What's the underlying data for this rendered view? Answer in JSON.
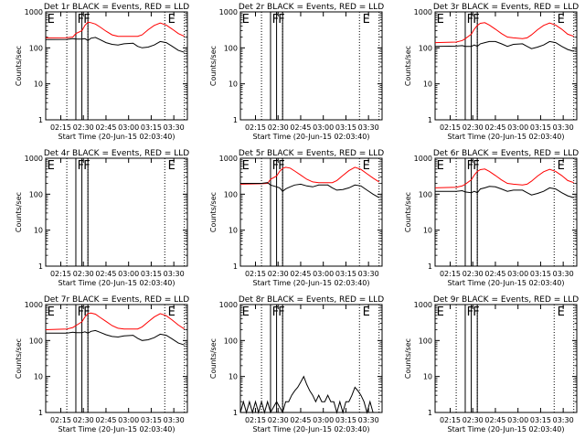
{
  "chart_data": {
    "type": "line",
    "layout": "3x3 grid",
    "log_scale_y": true,
    "yticks": [
      "1",
      "10",
      "100",
      "1000"
    ],
    "xticks": [
      "02:15",
      "02:30",
      "02:45",
      "03:00",
      "03:15",
      "03:30"
    ],
    "xlabel": "Start Time (20-Jun-15 02:03:40)",
    "ylabel": "Counts/sec",
    "xlim": [
      122,
      216
    ],
    "ylim": [
      1,
      1000
    ],
    "dotted_lines_x": [
      136,
      150,
      201,
      214
    ],
    "solid_lines_x": [
      142,
      146,
      150
    ],
    "colors": {
      "events": "#000000",
      "lld": "#ff0000"
    },
    "flag_letters": {
      "E": "E",
      "F": "F"
    },
    "panels": [
      {
        "title": "Det 1r BLACK = Events, RED = LLD",
        "flags": [
          {
            "x": 123,
            "label": "E"
          },
          {
            "x": 143,
            "label": "F"
          },
          {
            "x": 147,
            "label": "F"
          },
          {
            "x": 203,
            "label": "E"
          }
        ],
        "series": [
          {
            "name": "Events",
            "color": "#000000",
            "x": [
              122,
              136,
              140,
              142,
              146,
              148,
              150,
              152,
              155,
              158,
              162,
              166,
              170,
              174,
              180,
              183,
              186,
              190,
              194,
              198,
              202,
              206,
              210,
              214
            ],
            "y": [
              170,
              172,
              180,
              175,
              175,
              180,
              160,
              185,
              195,
              170,
              140,
              125,
              120,
              130,
              135,
              110,
              100,
              105,
              120,
              150,
              140,
              110,
              85,
              75
            ]
          },
          {
            "name": "LLD",
            "color": "#ff0000",
            "x": [
              122,
              136,
              140,
              142,
              146,
              148,
              150,
              152,
              155,
              158,
              162,
              166,
              170,
              174,
              180,
              183,
              186,
              190,
              194,
              198,
              202,
              206,
              210,
              214
            ],
            "y": [
              190,
              192,
              200,
              250,
              300,
              420,
              520,
              500,
              460,
              380,
              290,
              230,
              210,
              210,
              210,
              210,
              230,
              320,
              420,
              490,
              430,
              330,
              250,
              210
            ]
          }
        ]
      },
      {
        "title": "Det 2r BLACK = Events, RED = LLD",
        "flags": [
          {
            "x": 123,
            "label": "E"
          },
          {
            "x": 143,
            "label": "F"
          },
          {
            "x": 147,
            "label": "F"
          },
          {
            "x": 203,
            "label": "E"
          }
        ],
        "series": []
      },
      {
        "title": "Det 3r BLACK = Events, RED = LLD",
        "flags": [
          {
            "x": 123,
            "label": "E"
          },
          {
            "x": 143,
            "label": "F"
          },
          {
            "x": 147,
            "label": "F"
          },
          {
            "x": 203,
            "label": "E"
          }
        ],
        "series": [
          {
            "name": "Events",
            "color": "#000000",
            "x": [
              122,
              136,
              140,
              142,
              146,
              148,
              150,
              152,
              155,
              158,
              162,
              166,
              170,
              174,
              180,
              183,
              186,
              190,
              194,
              198,
              202,
              206,
              210,
              214
            ],
            "y": [
              110,
              112,
              115,
              110,
              110,
              120,
              110,
              130,
              140,
              150,
              150,
              130,
              110,
              125,
              130,
              110,
              95,
              105,
              120,
              150,
              140,
              110,
              90,
              80
            ]
          },
          {
            "name": "LLD",
            "color": "#ff0000",
            "x": [
              122,
              136,
              140,
              142,
              146,
              148,
              150,
              152,
              155,
              158,
              162,
              166,
              170,
              174,
              180,
              183,
              186,
              190,
              194,
              198,
              202,
              206,
              210,
              214
            ],
            "y": [
              140,
              145,
              160,
              180,
              240,
              330,
              420,
              480,
              500,
              430,
              330,
              250,
              200,
              190,
              180,
              190,
              230,
              320,
              420,
              490,
              430,
              330,
              240,
              210
            ]
          }
        ]
      },
      {
        "title": "Det 4r BLACK = Events, RED = LLD",
        "flags": [
          {
            "x": 123,
            "label": "E"
          },
          {
            "x": 143,
            "label": "F"
          },
          {
            "x": 147,
            "label": "F"
          },
          {
            "x": 203,
            "label": "E"
          }
        ],
        "series": []
      },
      {
        "title": "Det 5r BLACK = Events, RED = LLD",
        "flags": [
          {
            "x": 123,
            "label": "E"
          },
          {
            "x": 143,
            "label": "F"
          },
          {
            "x": 147,
            "label": "F"
          },
          {
            "x": 203,
            "label": "E"
          }
        ],
        "series": [
          {
            "name": "Events",
            "color": "#000000",
            "x": [
              122,
              136,
              140,
              142,
              146,
              148,
              150,
              152,
              155,
              158,
              162,
              166,
              170,
              174,
              180,
              183,
              186,
              190,
              194,
              198,
              202,
              206,
              210,
              214
            ],
            "y": [
              200,
              200,
              210,
              180,
              160,
              150,
              120,
              140,
              160,
              180,
              190,
              170,
              160,
              180,
              180,
              150,
              130,
              135,
              150,
              180,
              170,
              130,
              100,
              80
            ]
          },
          {
            "name": "LLD",
            "color": "#ff0000",
            "x": [
              122,
              136,
              140,
              142,
              146,
              148,
              150,
              152,
              155,
              158,
              162,
              166,
              170,
              174,
              180,
              183,
              186,
              190,
              194,
              198,
              202,
              206,
              210,
              214
            ],
            "y": [
              190,
              195,
              200,
              260,
              320,
              430,
              520,
              560,
              530,
              440,
              340,
              260,
              220,
              210,
              210,
              210,
              240,
              330,
              450,
              560,
              490,
              370,
              280,
              220
            ]
          }
        ]
      },
      {
        "title": "Det 6r BLACK = Events, RED = LLD",
        "flags": [
          {
            "x": 123,
            "label": "E"
          },
          {
            "x": 143,
            "label": "F"
          },
          {
            "x": 147,
            "label": "F"
          },
          {
            "x": 203,
            "label": "E"
          }
        ],
        "series": [
          {
            "name": "Events",
            "color": "#000000",
            "x": [
              122,
              136,
              140,
              142,
              146,
              148,
              150,
              152,
              155,
              158,
              162,
              166,
              170,
              174,
              180,
              183,
              186,
              190,
              194,
              198,
              202,
              206,
              210,
              214
            ],
            "y": [
              120,
              120,
              125,
              115,
              110,
              120,
              110,
              140,
              150,
              165,
              160,
              140,
              120,
              130,
              130,
              110,
              95,
              105,
              120,
              150,
              140,
              110,
              90,
              80
            ]
          },
          {
            "name": "LLD",
            "color": "#ff0000",
            "x": [
              122,
              136,
              140,
              142,
              146,
              148,
              150,
              152,
              155,
              158,
              162,
              166,
              170,
              174,
              180,
              183,
              186,
              190,
              194,
              198,
              202,
              206,
              210,
              214
            ],
            "y": [
              150,
              155,
              170,
              190,
              250,
              340,
              430,
              480,
              500,
              430,
              330,
              250,
              200,
              190,
              180,
              190,
              230,
              320,
              420,
              490,
              430,
              330,
              240,
              210
            ]
          }
        ]
      },
      {
        "title": "Det 7r BLACK = Events, RED = LLD",
        "flags": [
          {
            "x": 123,
            "label": "E"
          },
          {
            "x": 143,
            "label": "F"
          },
          {
            "x": 147,
            "label": "F"
          },
          {
            "x": 203,
            "label": "E"
          }
        ],
        "series": [
          {
            "name": "Events",
            "color": "#000000",
            "x": [
              122,
              136,
              140,
              142,
              146,
              148,
              150,
              152,
              155,
              158,
              162,
              166,
              170,
              174,
              180,
              183,
              186,
              190,
              194,
              198,
              202,
              206,
              210,
              214
            ],
            "y": [
              160,
              160,
              170,
              165,
              165,
              175,
              160,
              180,
              190,
              170,
              145,
              130,
              125,
              135,
              140,
              115,
              100,
              105,
              120,
              150,
              140,
              110,
              85,
              75
            ]
          },
          {
            "name": "LLD",
            "color": "#ff0000",
            "x": [
              122,
              136,
              140,
              142,
              146,
              148,
              150,
              152,
              155,
              158,
              162,
              166,
              170,
              174,
              180,
              183,
              186,
              190,
              194,
              198,
              202,
              206,
              210,
              214
            ],
            "y": [
              200,
              210,
              230,
              260,
              330,
              450,
              560,
              580,
              540,
              440,
              340,
              260,
              220,
              210,
              210,
              210,
              240,
              330,
              450,
              560,
              490,
              370,
              270,
              210
            ]
          }
        ]
      },
      {
        "title": "Det 8r BLACK = Events, RED = LLD",
        "flags": [
          {
            "x": 123,
            "label": "E"
          },
          {
            "x": 143,
            "label": "F"
          },
          {
            "x": 147,
            "label": "F"
          },
          {
            "x": 203,
            "label": "E"
          }
        ],
        "series": [
          {
            "name": "Events",
            "color": "#000000",
            "x": [
              122,
              124,
              126,
              128,
              130,
              132,
              134,
              136,
              138,
              140,
              142,
              146,
              150,
              152,
              154,
              156,
              158,
              160,
              162,
              164,
              166,
              168,
              170,
              172,
              174,
              176,
              178,
              180,
              182,
              184,
              186,
              188,
              190,
              192,
              194,
              196,
              198,
              200,
              202,
              204,
              206,
              208,
              210
            ],
            "y": [
              1,
              2,
              1,
              2,
              1,
              2,
              1,
              2,
              1,
              2,
              1,
              2,
              1,
              2,
              2,
              3,
              4,
              5,
              7,
              10,
              6,
              4,
              3,
              2,
              3,
              2,
              2,
              3,
              2,
              2,
              1,
              2,
              1,
              2,
              2,
              3,
              5,
              4,
              3,
              2,
              1,
              2,
              1
            ]
          },
          {
            "name": "LLD",
            "color": "#ff0000",
            "x": [],
            "y": []
          }
        ]
      },
      {
        "title": "Det 9r BLACK = Events, RED = LLD",
        "flags": [
          {
            "x": 123,
            "label": "E"
          },
          {
            "x": 143,
            "label": "F"
          },
          {
            "x": 147,
            "label": "F"
          },
          {
            "x": 203,
            "label": "E"
          }
        ],
        "series": []
      }
    ]
  }
}
